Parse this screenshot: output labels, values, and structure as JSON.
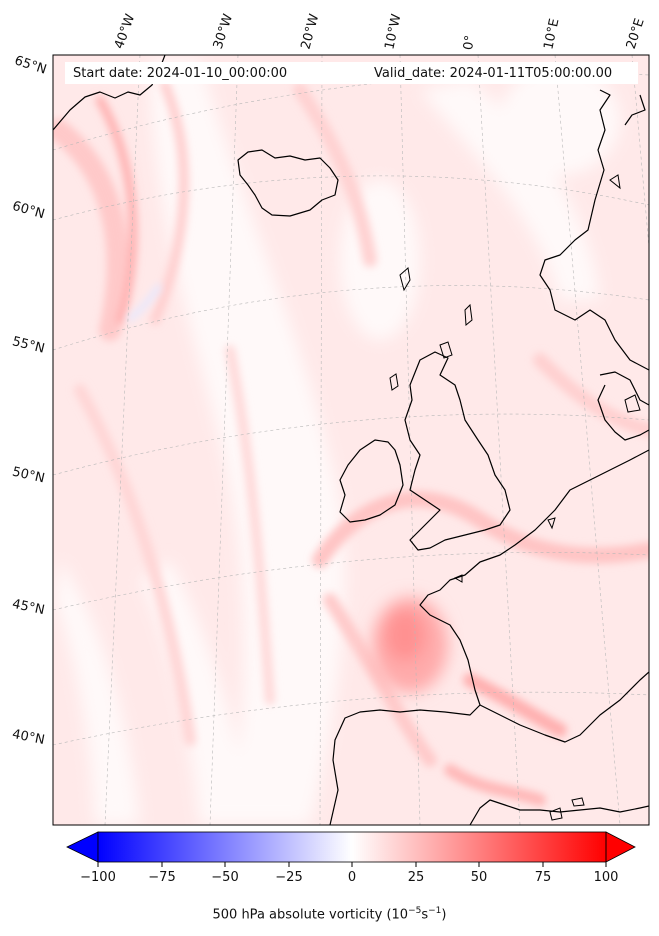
{
  "header": {
    "start_date": "Start date: 2024-01-10_00:00:00",
    "valid_date": "Valid_date: 2024-01-11T05:00:00.00"
  },
  "map": {
    "longitude_labels": [
      "40°W",
      "30°W",
      "20°W",
      "10°W",
      "0°",
      "10°E",
      "20°E"
    ],
    "latitude_labels": [
      "65°N",
      "60°N",
      "55°N",
      "50°N",
      "45°N",
      "40°N"
    ],
    "field": "500 hPa absolute vorticity",
    "colormap": "bwr",
    "coastline_color": "#000000"
  },
  "colorbar": {
    "ticks": [
      "−100",
      "−75",
      "−50",
      "−25",
      "0",
      "25",
      "50",
      "75",
      "100"
    ],
    "range": [
      -100,
      100
    ],
    "label_main": "500 hPa absolute vorticity (10",
    "label_exp1": "−5",
    "label_mid": "s",
    "label_exp2": "−1",
    "label_end": ")",
    "min_color": "#0000ff",
    "mid_color": "#ffffff",
    "max_color": "#ff0000"
  }
}
